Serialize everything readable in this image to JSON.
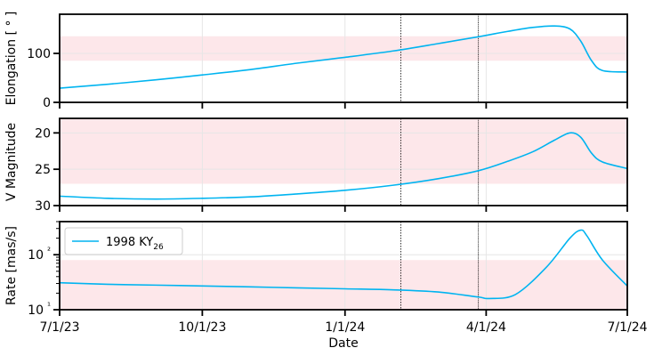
{
  "chart_data": [
    {
      "type": "line",
      "ylabel": "Elongation [ ° ]",
      "ylim": [
        0,
        180
      ],
      "yticks": [
        0,
        100
      ],
      "ytick_labels": [
        "0",
        "100"
      ],
      "shade_band": [
        85,
        135
      ],
      "series": [
        {
          "name": "1998 KY26",
          "x": [
            "2023-07-01",
            "2023-08-01",
            "2023-09-01",
            "2023-10-01",
            "2023-11-01",
            "2023-12-01",
            "2024-01-01",
            "2024-02-01",
            "2024-03-01",
            "2024-03-27",
            "2024-04-15",
            "2024-05-01",
            "2024-05-15",
            "2024-05-25",
            "2024-06-01",
            "2024-06-08",
            "2024-06-15",
            "2024-07-01"
          ],
          "values": [
            29,
            37,
            46,
            56,
            67,
            80,
            92,
            105,
            120,
            134,
            145,
            153,
            156,
            150,
            125,
            85,
            65,
            62
          ]
        }
      ]
    },
    {
      "type": "line",
      "ylabel": "V Magnitude",
      "ylim": [
        30,
        18
      ],
      "inverted": true,
      "yticks": [
        20,
        25,
        30
      ],
      "ytick_labels": [
        "20",
        "25",
        "30"
      ],
      "shade_band": [
        18,
        27
      ],
      "series": [
        {
          "name": "1998 KY26",
          "x": [
            "2023-07-01",
            "2023-08-01",
            "2023-09-01",
            "2023-10-01",
            "2023-11-01",
            "2023-12-01",
            "2024-01-01",
            "2024-02-01",
            "2024-03-01",
            "2024-03-27",
            "2024-04-15",
            "2024-05-01",
            "2024-05-15",
            "2024-05-25",
            "2024-06-01",
            "2024-06-08",
            "2024-06-15",
            "2024-07-01"
          ],
          "values": [
            28.7,
            29.0,
            29.1,
            29.0,
            28.8,
            28.4,
            27.9,
            27.2,
            26.3,
            25.2,
            23.9,
            22.6,
            21.0,
            20.0,
            20.6,
            22.8,
            24.0,
            24.9
          ]
        }
      ]
    },
    {
      "type": "line",
      "ylabel": "Rate [mas/s]",
      "yscale": "log",
      "ylim": [
        10,
        400
      ],
      "yticks": [
        10,
        100
      ],
      "ytick_labels": [
        "10¹",
        "10²"
      ],
      "shade_band": [
        10,
        80
      ],
      "legend": {
        "placement": "upper-left",
        "entries": [
          {
            "label": "1998 KY",
            "subscript": "26",
            "color": "#00b4f0"
          }
        ]
      },
      "series": [
        {
          "name": "1998 KY26",
          "x": [
            "2023-07-01",
            "2023-08-01",
            "2023-09-01",
            "2023-10-01",
            "2023-11-01",
            "2023-12-01",
            "2024-01-01",
            "2024-02-01",
            "2024-03-01",
            "2024-03-27",
            "2024-04-03",
            "2024-04-20",
            "2024-05-10",
            "2024-05-25",
            "2024-06-01",
            "2024-06-05",
            "2024-06-15",
            "2024-07-01"
          ],
          "values": [
            31,
            29,
            28,
            27,
            26,
            25,
            24,
            23,
            21,
            17,
            16,
            19,
            60,
            200,
            280,
            220,
            80,
            27
          ]
        }
      ]
    }
  ],
  "shared_x": {
    "xlabel": "Date",
    "xlim": [
      "2023-07-01",
      "2024-07-01"
    ],
    "ticks": [
      "2023-07-01",
      "2023-10-01",
      "2024-01-01",
      "2024-04-01",
      "2024-07-01"
    ],
    "tick_labels": [
      "7/1/23",
      "10/1/23",
      "1/1/24",
      "4/1/24",
      "7/1/24"
    ],
    "vertical_markers": [
      "2024-02-06",
      "2024-03-27"
    ]
  },
  "colors": {
    "line": "#00b4f0",
    "band": "#fde7ea",
    "grid": "#e6e6e6",
    "marker_line": "#000000"
  },
  "grid": true
}
